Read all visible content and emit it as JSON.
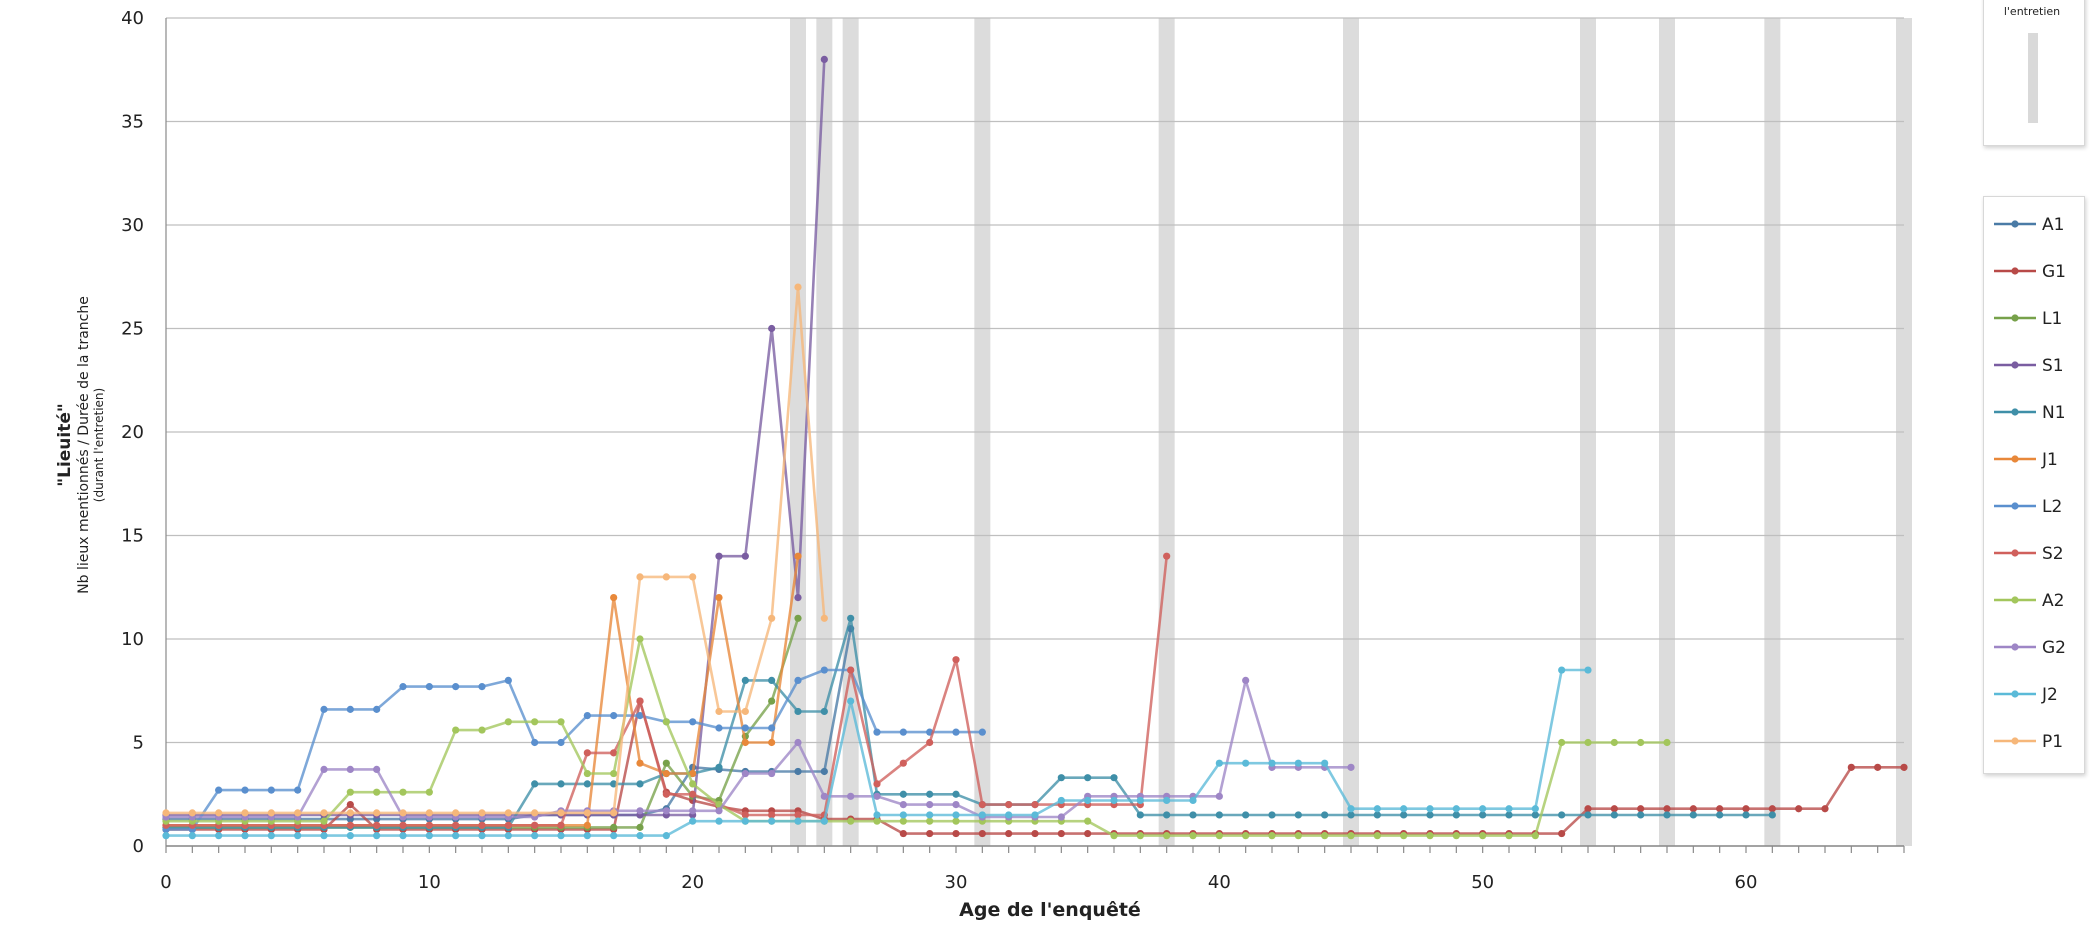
{
  "chart_data": {
    "type": "line",
    "title": "",
    "xlabel": "Age de l'enquêté",
    "ylabel_main": "\"Lieuité\"",
    "ylabel_sub": "Nb lieux mentionnés / Durée de la tranche",
    "ylabel_sub2": "(durant l'entretien)",
    "xlim": [
      0,
      66
    ],
    "ylim": [
      0,
      40
    ],
    "xticks": [
      0,
      10,
      20,
      30,
      40,
      50,
      60
    ],
    "yticks": [
      0,
      5,
      10,
      15,
      20,
      25,
      30,
      35,
      40
    ],
    "grid": "horizontal",
    "legend_position": "right",
    "marker_legend_label": "l'entretien",
    "shaded_ages": [
      24,
      25,
      26,
      31,
      38,
      45,
      54,
      57,
      61,
      66
    ],
    "series": [
      {
        "name": "A1",
        "color": "#4a7ba6",
        "x": [
          0,
          1,
          2,
          3,
          4,
          5,
          6,
          7,
          8,
          9,
          10,
          11,
          12,
          13,
          14,
          15,
          16,
          17,
          18,
          19,
          20,
          21,
          22,
          23,
          24,
          25,
          26
        ],
        "y": [
          1.3,
          1.3,
          1.3,
          1.3,
          1.3,
          1.3,
          1.3,
          1.3,
          1.3,
          1.3,
          1.3,
          1.3,
          1.3,
          1.3,
          1.5,
          1.5,
          1.5,
          1.5,
          1.5,
          1.8,
          3.8,
          3.7,
          3.6,
          3.6,
          3.6,
          3.6,
          10.5
        ]
      },
      {
        "name": "G1",
        "color": "#b84a48",
        "x": [
          0,
          1,
          2,
          3,
          4,
          5,
          6,
          7,
          8,
          9,
          10,
          11,
          12,
          13,
          14,
          15,
          16,
          17,
          18,
          19,
          20,
          21,
          22,
          23,
          24,
          25,
          26,
          27,
          28,
          29,
          30,
          31,
          32,
          33,
          34,
          35,
          36,
          37,
          38,
          39,
          40,
          41,
          42,
          43,
          44,
          45,
          46,
          47,
          48,
          49,
          50,
          51,
          52,
          53,
          54,
          55,
          56,
          57,
          58,
          59,
          60,
          61,
          62,
          63,
          64,
          65,
          66
        ],
        "y": [
          0.8,
          0.8,
          0.8,
          0.8,
          0.8,
          0.8,
          0.8,
          2.0,
          0.8,
          0.8,
          0.8,
          0.8,
          0.8,
          0.8,
          0.8,
          0.8,
          0.8,
          0.8,
          7.0,
          2.6,
          2.2,
          1.9,
          1.7,
          1.7,
          1.7,
          1.3,
          1.3,
          1.3,
          0.6,
          0.6,
          0.6,
          0.6,
          0.6,
          0.6,
          0.6,
          0.6,
          0.6,
          0.6,
          0.6,
          0.6,
          0.6,
          0.6,
          0.6,
          0.6,
          0.6,
          0.6,
          0.6,
          0.6,
          0.6,
          0.6,
          0.6,
          0.6,
          0.6,
          0.6,
          1.8,
          1.8,
          1.8,
          1.8,
          1.8,
          1.8,
          1.8,
          1.8,
          1.8,
          1.8,
          3.8,
          3.8,
          3.8
        ]
      },
      {
        "name": "L1",
        "color": "#77a14a",
        "x": [
          0,
          1,
          2,
          3,
          4,
          5,
          6,
          7,
          8,
          9,
          10,
          11,
          12,
          13,
          14,
          15,
          16,
          17,
          18,
          19,
          20,
          21,
          22,
          23,
          24
        ],
        "y": [
          0.9,
          0.9,
          0.9,
          0.9,
          0.9,
          0.9,
          0.9,
          0.9,
          0.9,
          0.9,
          0.9,
          0.9,
          0.9,
          0.9,
          0.9,
          0.9,
          0.9,
          0.9,
          0.9,
          4.0,
          2.4,
          2.2,
          5.3,
          7.0,
          11.0
        ]
      },
      {
        "name": "S1",
        "color": "#7a5da1",
        "x": [
          0,
          1,
          2,
          3,
          4,
          5,
          6,
          7,
          8,
          9,
          10,
          11,
          12,
          13,
          14,
          15,
          16,
          17,
          18,
          19,
          20,
          21,
          22,
          23,
          24,
          25
        ],
        "y": [
          1.5,
          1.5,
          1.5,
          1.5,
          1.5,
          1.5,
          1.5,
          1.5,
          1.5,
          1.5,
          1.5,
          1.5,
          1.5,
          1.5,
          1.5,
          1.5,
          1.5,
          1.5,
          1.5,
          1.5,
          1.5,
          14.0,
          14.0,
          25.0,
          12.0,
          38.0
        ]
      },
      {
        "name": "N1",
        "color": "#3f8fa8",
        "x": [
          0,
          1,
          2,
          3,
          4,
          5,
          6,
          7,
          8,
          9,
          10,
          11,
          12,
          13,
          14,
          15,
          16,
          17,
          18,
          19,
          20,
          21,
          22,
          23,
          24,
          25,
          26,
          27,
          28,
          29,
          30,
          31,
          32,
          33,
          34,
          35,
          36,
          37,
          38,
          39,
          40,
          41,
          42,
          43,
          44,
          45,
          46,
          47,
          48,
          49,
          50,
          51,
          52,
          53,
          54,
          55,
          56,
          57,
          58,
          59,
          60,
          61
        ],
        "y": [
          0.9,
          0.9,
          0.9,
          0.9,
          0.9,
          0.9,
          0.9,
          0.9,
          0.9,
          0.9,
          0.9,
          0.9,
          0.9,
          0.9,
          3.0,
          3.0,
          3.0,
          3.0,
          3.0,
          3.5,
          3.5,
          3.8,
          8.0,
          8.0,
          6.5,
          6.5,
          11.0,
          2.5,
          2.5,
          2.5,
          2.5,
          2.0,
          2.0,
          2.0,
          3.3,
          3.3,
          3.3,
          1.5,
          1.5,
          1.5,
          1.5,
          1.5,
          1.5,
          1.5,
          1.5,
          1.5,
          1.5,
          1.5,
          1.5,
          1.5,
          1.5,
          1.5,
          1.5,
          1.5,
          1.5,
          1.5,
          1.5,
          1.5,
          1.5,
          1.5,
          1.5,
          1.5
        ]
      },
      {
        "name": "J1",
        "color": "#e8883a",
        "x": [
          0,
          1,
          2,
          3,
          4,
          5,
          6,
          7,
          8,
          9,
          10,
          11,
          12,
          13,
          14,
          15,
          16,
          17,
          18,
          19,
          20,
          21,
          22,
          23,
          24
        ],
        "y": [
          1.0,
          1.0,
          1.0,
          1.0,
          1.0,
          1.0,
          1.0,
          1.0,
          1.0,
          1.0,
          1.0,
          1.0,
          1.0,
          1.0,
          1.0,
          1.0,
          1.0,
          12.0,
          4.0,
          3.5,
          3.5,
          12.0,
          5.0,
          5.0,
          14.0
        ]
      },
      {
        "name": "L2",
        "color": "#5a8fce",
        "x": [
          0,
          1,
          2,
          3,
          4,
          5,
          6,
          7,
          8,
          9,
          10,
          11,
          12,
          13,
          14,
          15,
          16,
          17,
          18,
          19,
          20,
          21,
          22,
          23,
          24,
          25,
          26,
          27,
          28,
          29,
          30,
          31
        ],
        "y": [
          0.8,
          0.8,
          2.7,
          2.7,
          2.7,
          2.7,
          6.6,
          6.6,
          6.6,
          7.7,
          7.7,
          7.7,
          7.7,
          8.0,
          5.0,
          5.0,
          6.3,
          6.3,
          6.3,
          6.0,
          6.0,
          5.7,
          5.7,
          5.7,
          8.0,
          8.5,
          8.5,
          5.5,
          5.5,
          5.5,
          5.5,
          5.5
        ]
      },
      {
        "name": "S2",
        "color": "#d0605c",
        "x": [
          0,
          1,
          2,
          3,
          4,
          5,
          6,
          7,
          8,
          9,
          10,
          11,
          12,
          13,
          14,
          15,
          16,
          17,
          18,
          19,
          20,
          21,
          22,
          23,
          24,
          25,
          26,
          27,
          28,
          29,
          30,
          31,
          32,
          33,
          34,
          35,
          36,
          37,
          38
        ],
        "y": [
          1.0,
          1.0,
          1.0,
          1.0,
          1.0,
          1.0,
          1.0,
          1.0,
          1.0,
          1.0,
          1.0,
          1.0,
          1.0,
          1.0,
          1.0,
          1.0,
          4.5,
          4.5,
          7.0,
          2.5,
          2.5,
          2.0,
          1.5,
          1.5,
          1.5,
          1.5,
          8.5,
          3.0,
          4.0,
          5.0,
          9.0,
          2.0,
          2.0,
          2.0,
          2.0,
          2.0,
          2.0,
          2.0,
          14.0
        ]
      },
      {
        "name": "A2",
        "color": "#a3c65c",
        "x": [
          0,
          1,
          2,
          3,
          4,
          5,
          6,
          7,
          8,
          9,
          10,
          11,
          12,
          13,
          14,
          15,
          16,
          17,
          18,
          19,
          20,
          21,
          22,
          23,
          24,
          25,
          26,
          27,
          28,
          29,
          30,
          31,
          32,
          33,
          34,
          35,
          36,
          37,
          38,
          39,
          40,
          41,
          42,
          43,
          44,
          45,
          46,
          47,
          48,
          49,
          50,
          51,
          52,
          53,
          54,
          55,
          56,
          57
        ],
        "y": [
          1.2,
          1.2,
          1.2,
          1.2,
          1.2,
          1.2,
          1.2,
          2.6,
          2.6,
          2.6,
          2.6,
          5.6,
          5.6,
          6.0,
          6.0,
          6.0,
          3.5,
          3.5,
          10.0,
          6.0,
          3.0,
          2.0,
          1.2,
          1.2,
          1.2,
          1.2,
          1.2,
          1.2,
          1.2,
          1.2,
          1.2,
          1.2,
          1.2,
          1.2,
          1.2,
          1.2,
          0.5,
          0.5,
          0.5,
          0.5,
          0.5,
          0.5,
          0.5,
          0.5,
          0.5,
          0.5,
          0.5,
          0.5,
          0.5,
          0.5,
          0.5,
          0.5,
          0.5,
          5.0,
          5.0,
          5.0,
          5.0,
          5.0
        ]
      },
      {
        "name": "G2",
        "color": "#9e86c6",
        "x": [
          0,
          1,
          2,
          3,
          4,
          5,
          6,
          7,
          8,
          9,
          10,
          11,
          12,
          13,
          14,
          15,
          16,
          17,
          18,
          19,
          20,
          21,
          22,
          23,
          24,
          25,
          26,
          27,
          28,
          29,
          30,
          31,
          32,
          33,
          34,
          35,
          36,
          37,
          38,
          39,
          40,
          41,
          42,
          43,
          44,
          45
        ],
        "y": [
          1.4,
          1.4,
          1.4,
          1.4,
          1.4,
          1.4,
          3.7,
          3.7,
          3.7,
          1.4,
          1.4,
          1.4,
          1.4,
          1.4,
          1.4,
          1.7,
          1.7,
          1.7,
          1.7,
          1.7,
          1.7,
          1.7,
          3.5,
          3.5,
          5.0,
          2.4,
          2.4,
          2.4,
          2.0,
          2.0,
          2.0,
          1.4,
          1.4,
          1.4,
          1.4,
          2.4,
          2.4,
          2.4,
          2.4,
          2.4,
          2.4,
          8.0,
          3.8,
          3.8,
          3.8,
          3.8
        ]
      },
      {
        "name": "J2",
        "color": "#5bbad8",
        "x": [
          0,
          1,
          2,
          3,
          4,
          5,
          6,
          7,
          8,
          9,
          10,
          11,
          12,
          13,
          14,
          15,
          16,
          17,
          18,
          19,
          20,
          21,
          22,
          23,
          24,
          25,
          26,
          27,
          28,
          29,
          30,
          31,
          32,
          33,
          34,
          35,
          36,
          37,
          38,
          39,
          40,
          41,
          42,
          43,
          44,
          45,
          46,
          47,
          48,
          49,
          50,
          51,
          52,
          53,
          54
        ],
        "y": [
          0.5,
          0.5,
          0.5,
          0.5,
          0.5,
          0.5,
          0.5,
          0.5,
          0.5,
          0.5,
          0.5,
          0.5,
          0.5,
          0.5,
          0.5,
          0.5,
          0.5,
          0.5,
          0.5,
          0.5,
          1.2,
          1.2,
          1.2,
          1.2,
          1.2,
          1.2,
          7.0,
          1.5,
          1.5,
          1.5,
          1.5,
          1.5,
          1.5,
          1.5,
          2.2,
          2.2,
          2.2,
          2.2,
          2.2,
          2.2,
          4.0,
          4.0,
          4.0,
          4.0,
          4.0,
          1.8,
          1.8,
          1.8,
          1.8,
          1.8,
          1.8,
          1.8,
          1.8,
          8.5,
          8.5
        ]
      },
      {
        "name": "P1",
        "color": "#f6b77a",
        "x": [
          0,
          1,
          2,
          3,
          4,
          5,
          6,
          7,
          8,
          9,
          10,
          11,
          12,
          13,
          14,
          15,
          16,
          17,
          18,
          19,
          20,
          21,
          22,
          23,
          24,
          25
        ],
        "y": [
          1.6,
          1.6,
          1.6,
          1.6,
          1.6,
          1.6,
          1.6,
          1.6,
          1.6,
          1.6,
          1.6,
          1.6,
          1.6,
          1.6,
          1.6,
          1.6,
          1.6,
          1.6,
          13.0,
          13.0,
          13.0,
          6.5,
          6.5,
          11.0,
          27.0,
          11.0
        ]
      }
    ]
  }
}
